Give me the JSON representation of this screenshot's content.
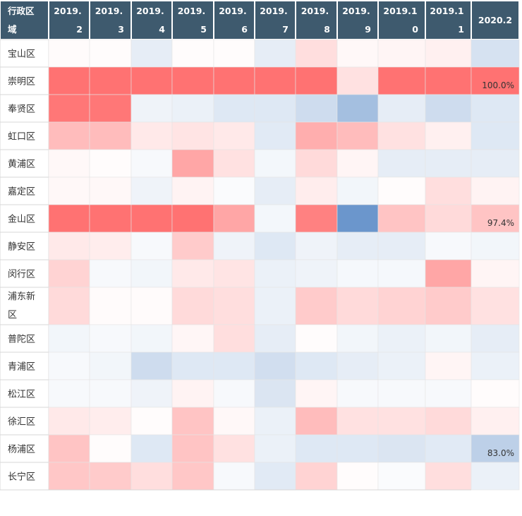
{
  "chart_data": {
    "type": "heatmap",
    "corner_header": [
      "行政区",
      "域"
    ],
    "columns": [
      [
        "2019.",
        "2"
      ],
      [
        "2019.",
        "3"
      ],
      [
        "2019.",
        "4"
      ],
      [
        "2019.",
        "5"
      ],
      [
        "2019.",
        "6"
      ],
      [
        "2019.",
        "7"
      ],
      [
        "2019.",
        "8"
      ],
      [
        "2019.",
        "9"
      ],
      [
        "2019.1",
        "0"
      ],
      [
        "2019.1",
        "1"
      ],
      [
        "2020.2"
      ]
    ],
    "rows": [
      [
        "宝山区"
      ],
      [
        "崇明区"
      ],
      [
        "奉贤区"
      ],
      [
        "虹口区"
      ],
      [
        "黄浦区"
      ],
      [
        "嘉定区"
      ],
      [
        "金山区"
      ],
      [
        "静安区"
      ],
      [
        "闵行区"
      ],
      [
        "浦东新",
        "区"
      ],
      [
        "普陀区"
      ],
      [
        "青浦区"
      ],
      [
        "松江区"
      ],
      [
        "徐汇区"
      ],
      [
        "杨浦区"
      ],
      [
        "长宁区"
      ]
    ],
    "values": [
      [
        3,
        2,
        -15,
        2,
        2,
        -15,
        22,
        5,
        7,
        10,
        -25
      ],
      [
        95,
        95,
        95,
        95,
        95,
        95,
        95,
        20,
        95,
        95,
        95
      ],
      [
        92,
        92,
        -10,
        -12,
        -20,
        -20,
        -30,
        -55,
        -15,
        -30,
        -20
      ],
      [
        45,
        45,
        15,
        18,
        15,
        -18,
        55,
        45,
        20,
        10,
        -20
      ],
      [
        5,
        2,
        -5,
        60,
        20,
        -7,
        25,
        7,
        -15,
        -15,
        -15
      ],
      [
        5,
        5,
        -10,
        8,
        -3,
        -15,
        12,
        -8,
        2,
        22,
        8
      ],
      [
        95,
        95,
        95,
        95,
        60,
        -7,
        85,
        -90,
        40,
        25,
        40
      ],
      [
        15,
        12,
        -5,
        35,
        -10,
        -20,
        -10,
        -15,
        -15,
        -5,
        -8
      ],
      [
        30,
        -5,
        -8,
        15,
        18,
        -12,
        -10,
        -6,
        -6,
        60,
        7
      ],
      [
        25,
        3,
        3,
        25,
        22,
        -12,
        35,
        25,
        30,
        35,
        20
      ],
      [
        -8,
        -5,
        -8,
        6,
        22,
        -15,
        2,
        -8,
        -12,
        -8,
        -15
      ],
      [
        -5,
        -8,
        -30,
        -20,
        -20,
        -28,
        -20,
        -15,
        -12,
        7,
        -12
      ],
      [
        -5,
        -5,
        -10,
        8,
        -5,
        -22,
        7,
        -5,
        -5,
        -5,
        2
      ],
      [
        15,
        12,
        2,
        40,
        5,
        -12,
        45,
        20,
        20,
        25,
        10
      ],
      [
        40,
        2,
        -20,
        40,
        20,
        -12,
        -20,
        -20,
        -22,
        -18,
        -40
      ],
      [
        38,
        35,
        22,
        38,
        -5,
        -18,
        30,
        2,
        -3,
        22,
        -12
      ]
    ],
    "labels": [
      {
        "row": 1,
        "col": 10,
        "text": "100.0%"
      },
      {
        "row": 6,
        "col": 10,
        "text": "97.4%"
      },
      {
        "row": 14,
        "col": 10,
        "text": "83.0%"
      }
    ],
    "color_scale": {
      "positive": "#ff6b6b",
      "negative": "#5a8ac6",
      "neutral": "#ffffff"
    }
  }
}
